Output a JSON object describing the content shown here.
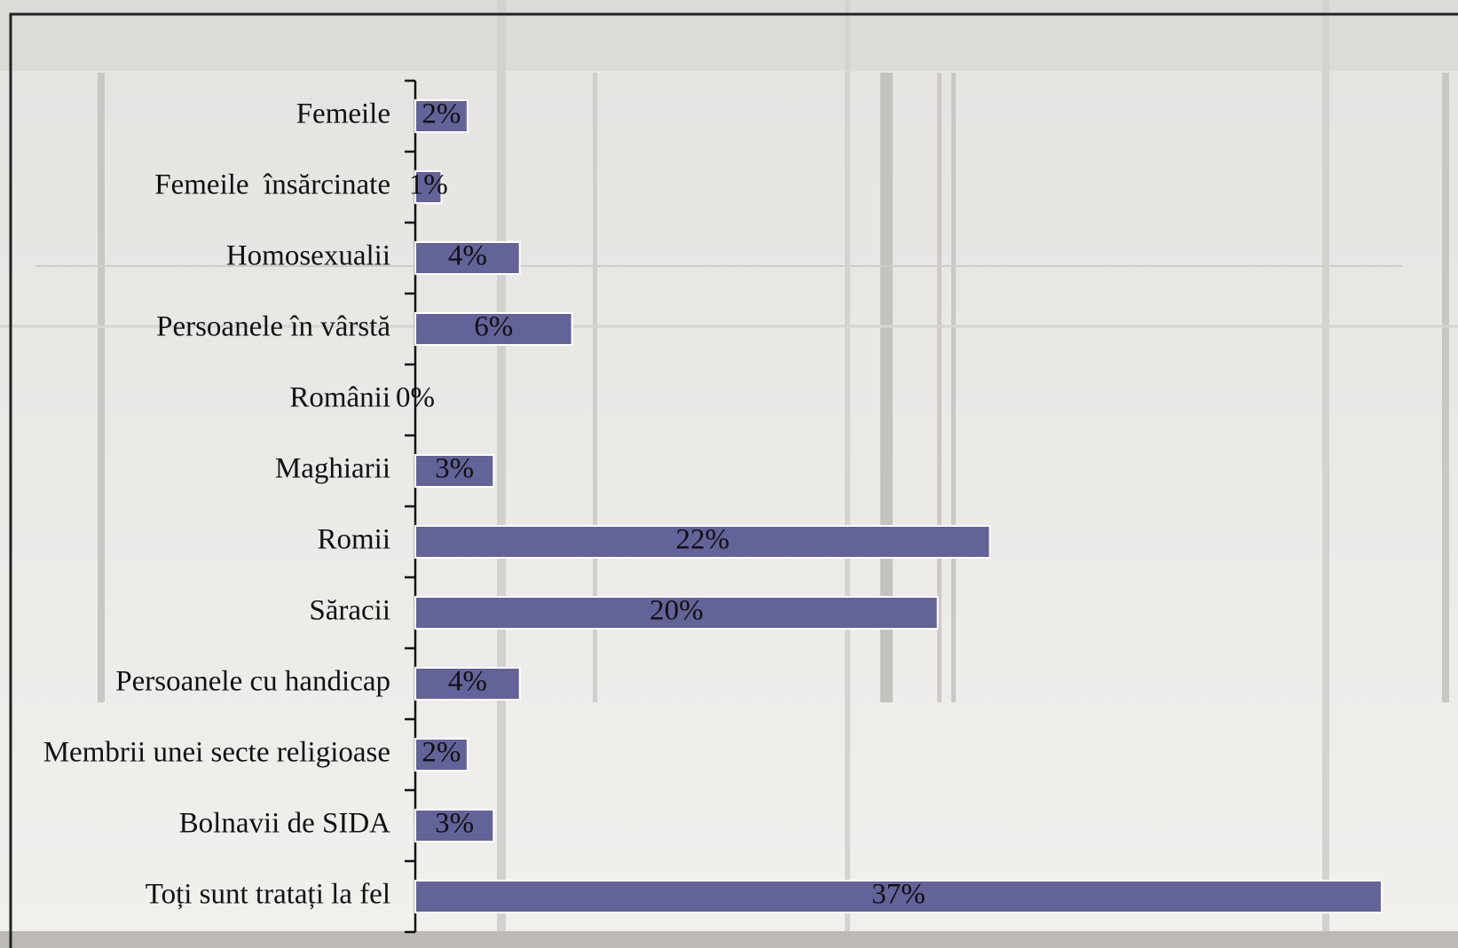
{
  "chart_data": {
    "type": "hbar",
    "categories": [
      "Femeile",
      "Femeile  însărcinate",
      "Homosexualii",
      "Persoanele în vârstă",
      "Românii",
      "Maghiarii",
      "Romii",
      "Săracii",
      "Persoanele cu handicap",
      "Membrii unei secte religioase",
      "Bolnavii de SIDA",
      "Toți sunt tratați la fel"
    ],
    "values": [
      2,
      1,
      4,
      6,
      0,
      3,
      22,
      20,
      4,
      2,
      3,
      37
    ],
    "value_labels": [
      "2%",
      "1%",
      "4%",
      "6%",
      "0%",
      "3%",
      "22%",
      "20%",
      "4%",
      "2%",
      "3%",
      "37%"
    ],
    "color": "#636399",
    "xlim": [
      0,
      37
    ]
  }
}
